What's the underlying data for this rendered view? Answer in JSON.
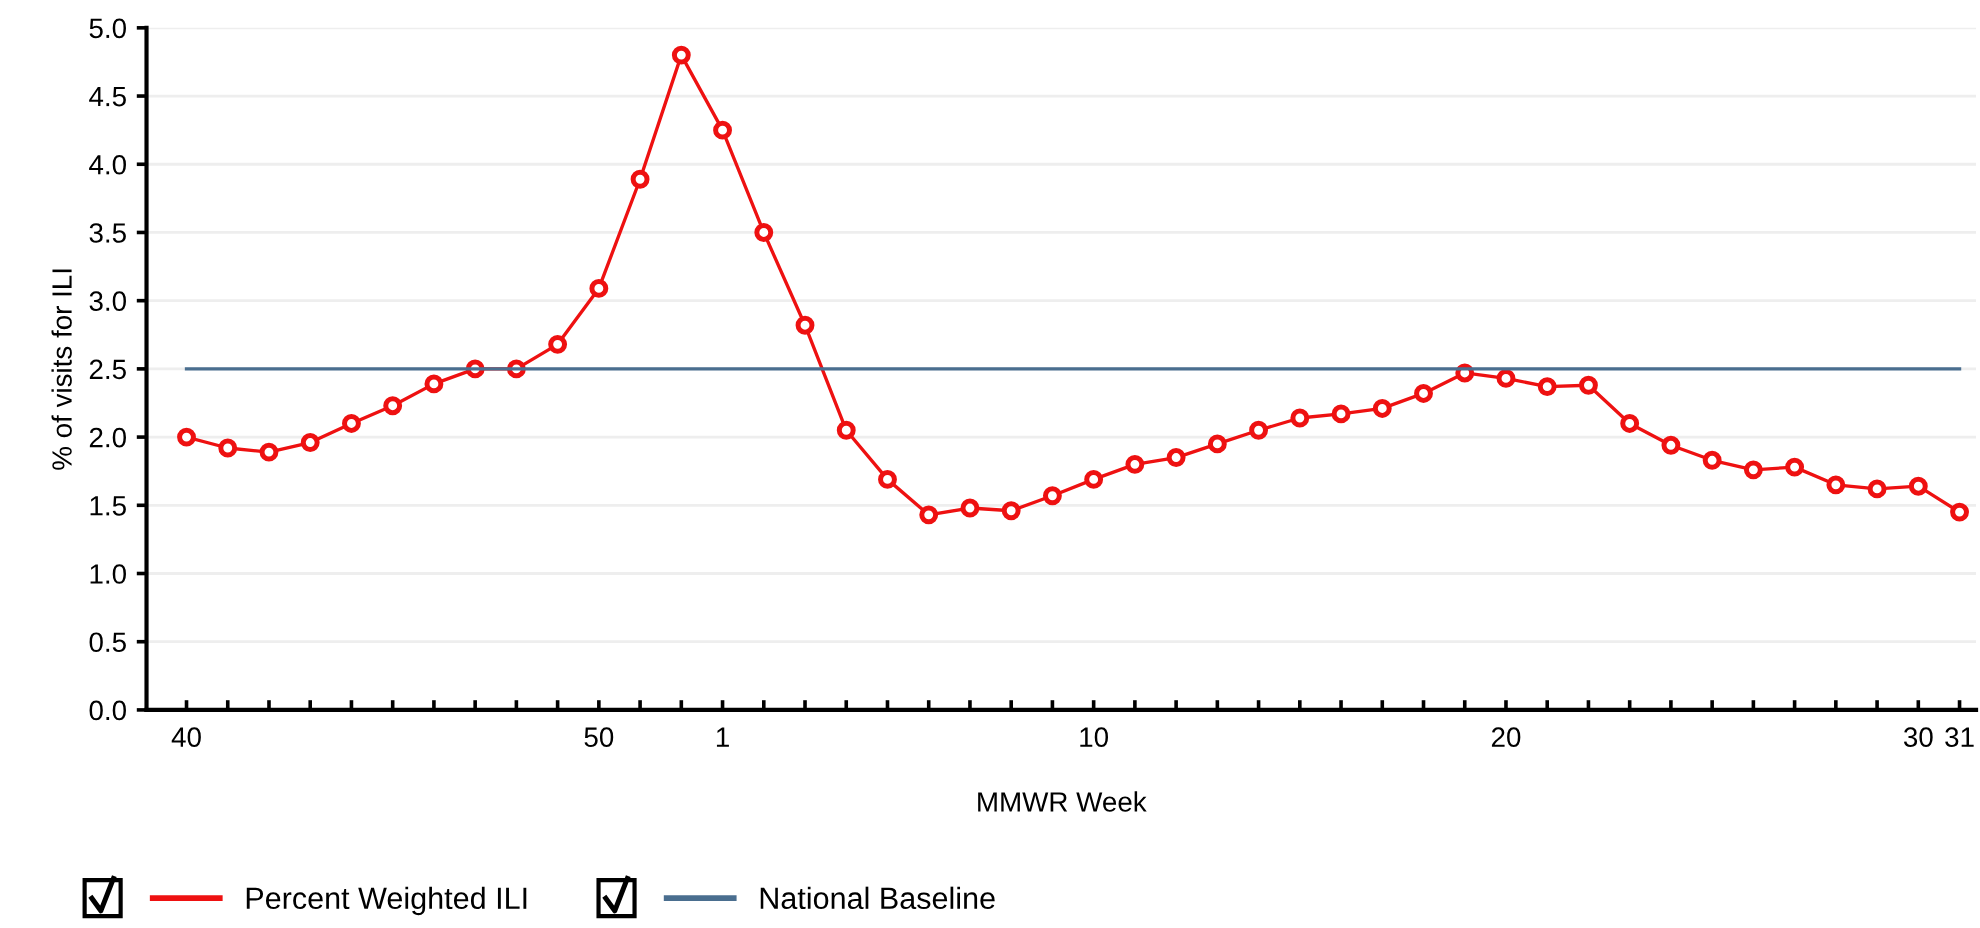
{
  "chart_data": {
    "type": "line",
    "xlabel": "MMWR Week",
    "ylabel": "% of visits for ILI",
    "categories": [
      "40",
      null,
      null,
      null,
      null,
      null,
      null,
      null,
      null,
      null,
      "50",
      null,
      null,
      "1",
      null,
      null,
      null,
      null,
      null,
      null,
      null,
      null,
      "10",
      null,
      null,
      null,
      null,
      null,
      null,
      null,
      null,
      null,
      "20",
      null,
      null,
      null,
      null,
      null,
      null,
      null,
      null,
      null,
      "30",
      "31"
    ],
    "series": [
      {
        "name": "Percent Weighted ILI",
        "color": "#ee1111",
        "marker": "circle",
        "values": [
          2.0,
          1.92,
          1.89,
          1.96,
          2.1,
          2.23,
          2.39,
          2.5,
          2.5,
          2.68,
          3.09,
          3.89,
          4.8,
          4.25,
          3.5,
          2.82,
          2.05,
          1.69,
          1.43,
          1.48,
          1.46,
          1.57,
          1.69,
          1.8,
          1.85,
          1.95,
          2.05,
          2.14,
          2.17,
          2.21,
          2.32,
          2.47,
          2.43,
          2.37,
          2.38,
          2.1,
          1.94,
          1.83,
          1.76,
          1.78,
          1.65,
          1.62,
          1.64,
          1.45
        ]
      },
      {
        "name": "National Baseline",
        "color": "#4a6e8f",
        "marker": "none",
        "values": [
          2.5,
          2.5,
          2.5,
          2.5,
          2.5,
          2.5,
          2.5,
          2.5,
          2.5,
          2.5,
          2.5,
          2.5,
          2.5,
          2.5,
          2.5,
          2.5,
          2.5,
          2.5,
          2.5,
          2.5,
          2.5,
          2.5,
          2.5,
          2.5,
          2.5,
          2.5,
          2.5,
          2.5,
          2.5,
          2.5,
          2.5,
          2.5,
          2.5,
          2.5,
          2.5,
          2.5,
          2.5,
          2.5,
          2.5,
          2.5,
          2.5,
          2.5,
          2.5,
          2.5
        ]
      }
    ],
    "ylim": [
      0,
      5
    ],
    "yticks": [
      {
        "value": 0,
        "label": "0.0"
      },
      {
        "value": 0.5,
        "label": "0.5"
      },
      {
        "value": 1,
        "label": "1.0"
      },
      {
        "value": 1.5,
        "label": "1.5"
      },
      {
        "value": 2,
        "label": "2.0"
      },
      {
        "value": 2.5,
        "label": "2.5"
      },
      {
        "value": 3,
        "label": "3.0"
      },
      {
        "value": 3.5,
        "label": "3.5"
      },
      {
        "value": 4,
        "label": "4.0"
      },
      {
        "value": 4.5,
        "label": "4.5"
      },
      {
        "value": 5,
        "label": "5.0"
      }
    ],
    "grid": "y",
    "legend": "bottom left",
    "line_style": "solid"
  }
}
